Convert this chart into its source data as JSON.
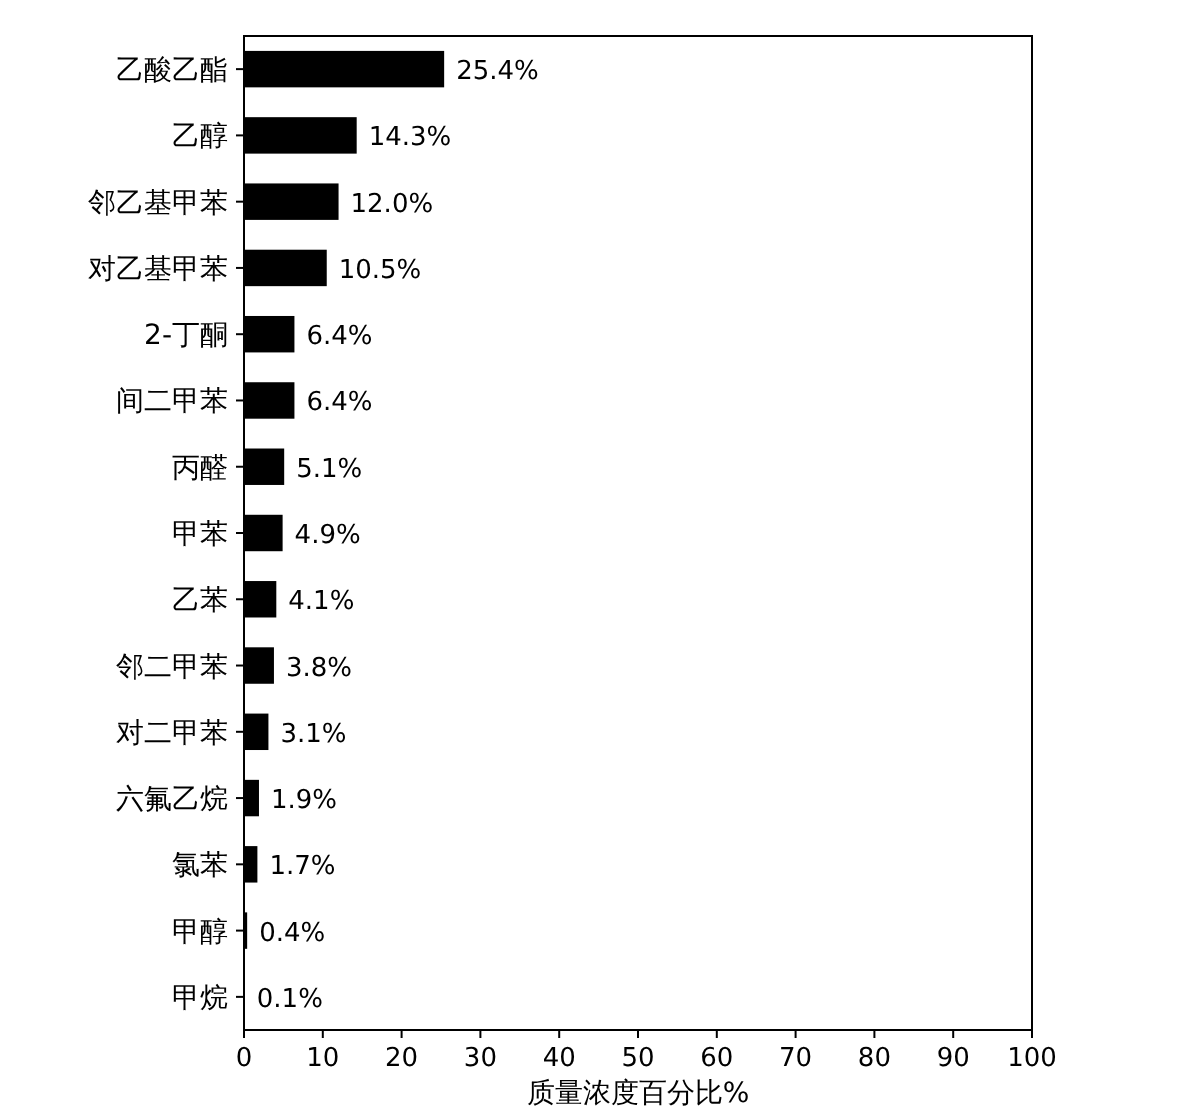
{
  "chart_data": {
    "type": "bar",
    "orientation": "horizontal",
    "xlabel": "质量浓度百分比%",
    "categories": [
      "乙酸乙酯",
      "乙醇",
      "邻乙基甲苯",
      "对乙基甲苯",
      "2-丁酮",
      "间二甲苯",
      "丙醛",
      "甲苯",
      "乙苯",
      "邻二甲苯",
      "对二甲苯",
      "六氟乙烷",
      "氯苯",
      "甲醇",
      "甲烷"
    ],
    "values": [
      25.4,
      14.3,
      12.0,
      10.5,
      6.4,
      6.4,
      5.1,
      4.9,
      4.1,
      3.8,
      3.1,
      1.9,
      1.7,
      0.4,
      0.1
    ],
    "value_labels": [
      "25.4%",
      "14.3%",
      "12.0%",
      "10.5%",
      "6.4%",
      "6.4%",
      "5.1%",
      "4.9%",
      "4.1%",
      "3.8%",
      "3.1%",
      "1.9%",
      "1.7%",
      "0.4%",
      "0.1%"
    ],
    "color": "#000000",
    "xlim": [
      0,
      100
    ],
    "xticks": [
      0,
      10,
      20,
      30,
      40,
      50,
      60,
      70,
      80,
      90,
      100
    ],
    "grid": false
  }
}
